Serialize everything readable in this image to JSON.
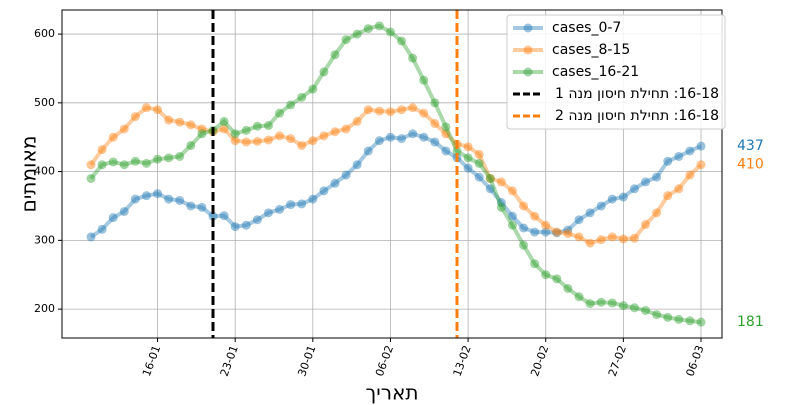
{
  "chart_data": {
    "type": "line",
    "x_label": "תאריך",
    "y_label": "מאומתים",
    "x": [
      "10-01",
      "11-01",
      "12-01",
      "13-01",
      "14-01",
      "15-01",
      "16-01",
      "17-01",
      "18-01",
      "19-01",
      "20-01",
      "21-01",
      "22-01",
      "23-01",
      "24-01",
      "25-01",
      "26-01",
      "27-01",
      "28-01",
      "29-01",
      "30-01",
      "31-01",
      "01-02",
      "02-02",
      "03-02",
      "04-02",
      "05-02",
      "06-02",
      "07-02",
      "08-02",
      "09-02",
      "10-02",
      "11-02",
      "12-02",
      "13-02",
      "14-02",
      "15-02",
      "16-02",
      "17-02",
      "18-02",
      "19-02",
      "20-02",
      "21-02",
      "22-02",
      "23-02",
      "24-02",
      "25-02",
      "26-02",
      "27-02",
      "28-02",
      "01-03",
      "02-03",
      "03-03",
      "04-03",
      "05-03",
      "06-03"
    ],
    "xticks": [
      "16-01",
      "23-01",
      "30-01",
      "06-02",
      "13-02",
      "20-02",
      "27-02",
      "06-03"
    ],
    "ylim": [
      158,
      635
    ],
    "yticks": [
      200,
      300,
      400,
      500,
      600
    ],
    "grid": true,
    "legend": "upper right",
    "series": [
      {
        "name": "cases_0-7",
        "color": "#1f77b4",
        "values": [
          305,
          316,
          333,
          342,
          360,
          365,
          368,
          360,
          358,
          350,
          348,
          335,
          336,
          320,
          322,
          330,
          340,
          345,
          352,
          353,
          360,
          372,
          383,
          395,
          410,
          430,
          445,
          450,
          448,
          455,
          450,
          443,
          430,
          420,
          405,
          392,
          375,
          355,
          335,
          318,
          312,
          312,
          311,
          315,
          330,
          340,
          350,
          360,
          363,
          375,
          385,
          392,
          415,
          422,
          430,
          437
        ]
      },
      {
        "name": "cases_8-15",
        "color": "#ff7f0e",
        "values": [
          410,
          432,
          450,
          462,
          480,
          493,
          490,
          475,
          472,
          468,
          462,
          458,
          462,
          445,
          443,
          444,
          446,
          452,
          448,
          438,
          445,
          452,
          458,
          462,
          473,
          490,
          488,
          487,
          490,
          493,
          485,
          470,
          455,
          440,
          436,
          425,
          390,
          385,
          372,
          350,
          335,
          322,
          312,
          310,
          305,
          296,
          301,
          305,
          302,
          303,
          323,
          340,
          365,
          375,
          395,
          410
        ]
      },
      {
        "name": "cases_16-21",
        "color": "#2ca02c",
        "values": [
          390,
          410,
          414,
          410,
          415,
          412,
          418,
          420,
          422,
          438,
          455,
          460,
          473,
          455,
          460,
          466,
          467,
          485,
          497,
          508,
          520,
          545,
          570,
          592,
          600,
          608,
          612,
          603,
          590,
          565,
          533,
          500,
          465,
          430,
          420,
          412,
          390,
          348,
          322,
          293,
          266,
          250,
          244,
          230,
          218,
          208,
          210,
          209,
          205,
          202,
          198,
          192,
          188,
          185,
          183,
          181
        ]
      }
    ],
    "vlines": [
      {
        "x": "21-01",
        "name": "16-18: תחילת חיסון מנה 1",
        "color": "#000000"
      },
      {
        "x": "12-02",
        "name": "16-18: תחילת חיסון מנה 2",
        "color": "#ff7f0e"
      }
    ]
  }
}
